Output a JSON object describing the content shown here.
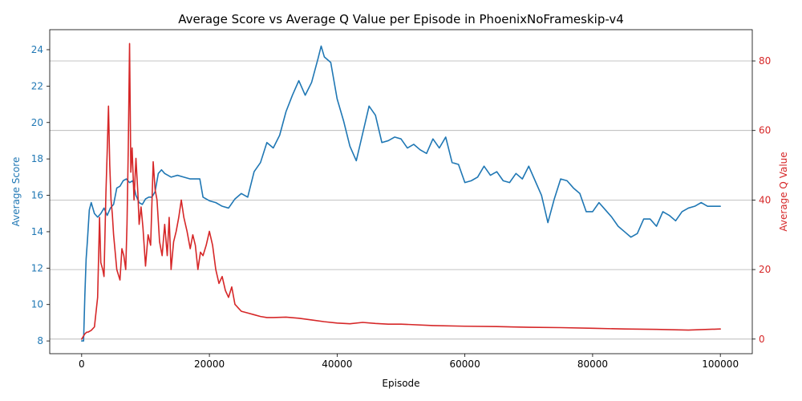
{
  "chart_data": {
    "type": "line",
    "title": "Average Score vs Average Q Value per Episode in PhoenixNoFrameskip-v4",
    "xlabel": "Episode",
    "ylabel_left": "Average Score",
    "ylabel_right": "Average Q Value",
    "xlim": [
      -5000,
      105000
    ],
    "ylim_left": [
      7.3,
      25.1
    ],
    "ylim_right": [
      -4.2,
      89
    ],
    "x_ticks": [
      0,
      20000,
      40000,
      60000,
      80000,
      100000
    ],
    "x_tick_labels": [
      "0",
      "20000",
      "40000",
      "60000",
      "80000",
      "100000"
    ],
    "y_left_ticks": [
      8,
      10,
      12,
      14,
      16,
      18,
      20,
      22,
      24
    ],
    "y_left_tick_labels": [
      "8",
      "10",
      "12",
      "14",
      "16",
      "18",
      "20",
      "22",
      "24"
    ],
    "y_right_ticks": [
      0,
      20,
      40,
      60,
      80
    ],
    "y_right_tick_labels": [
      "0",
      "20",
      "40",
      "60",
      "80"
    ],
    "grid": "horizontal lines at right-axis ticks",
    "colors": {
      "score": "#1f77b4",
      "q": "#d62728",
      "grid": "#b0b0b0",
      "axis": "#000000"
    },
    "series": [
      {
        "axis": "left",
        "x": [
          0,
          300,
          500,
          700,
          900,
          1200,
          1500,
          2000,
          2500,
          3000,
          3500,
          4000,
          4500,
          5000,
          5500,
          6000,
          6500,
          7000,
          7500,
          8000,
          8500,
          9000,
          9500,
          10000,
          10500,
          11000,
          11500,
          12000,
          12500,
          13000,
          13500,
          14000,
          15000,
          16000,
          17000,
          18000,
          18500,
          19000,
          20000,
          21000,
          22000,
          23000,
          24000,
          25000,
          26000,
          27000,
          28000,
          29000,
          30000,
          31000,
          32000,
          33000,
          34000,
          35000,
          36000,
          37000,
          37500,
          38000,
          39000,
          40000,
          41000,
          42000,
          43000,
          44000,
          45000,
          46000,
          47000,
          48000,
          49000,
          50000,
          51000,
          52000,
          53000,
          54000,
          55000,
          56000,
          57000,
          58000,
          59000,
          60000,
          61000,
          62000,
          63000,
          64000,
          65000,
          66000,
          67000,
          68000,
          69000,
          70000,
          71000,
          72000,
          73000,
          74000,
          75000,
          76000,
          77000,
          78000,
          79000,
          80000,
          81000,
          82000,
          83000,
          84000,
          85000,
          86000,
          87000,
          88000,
          89000,
          90000,
          91000,
          92000,
          93000,
          94000,
          95000,
          96000,
          97000,
          98000,
          99000,
          100000
        ],
        "values": [
          8.0,
          8.0,
          10.5,
          12.5,
          13.5,
          15.2,
          15.6,
          15.0,
          14.8,
          15.0,
          15.3,
          14.9,
          15.3,
          15.5,
          16.4,
          16.5,
          16.8,
          16.9,
          16.7,
          16.8,
          16.0,
          15.6,
          15.5,
          15.8,
          15.9,
          15.9,
          16.2,
          17.2,
          17.4,
          17.2,
          17.1,
          17.0,
          17.1,
          17.0,
          16.9,
          16.9,
          16.9,
          15.9,
          15.7,
          15.6,
          15.4,
          15.3,
          15.8,
          16.1,
          15.9,
          17.3,
          17.8,
          18.9,
          18.6,
          19.3,
          20.6,
          21.5,
          22.3,
          21.5,
          22.2,
          23.5,
          24.2,
          23.6,
          23.3,
          21.3,
          20.1,
          18.7,
          17.9,
          19.4,
          20.9,
          20.4,
          18.9,
          19.0,
          19.2,
          19.1,
          18.6,
          18.8,
          18.5,
          18.3,
          19.1,
          18.6,
          19.2,
          17.8,
          17.7,
          16.7,
          16.8,
          17.0,
          17.6,
          17.1,
          17.3,
          16.8,
          16.7,
          17.2,
          16.9,
          17.6,
          16.8,
          16.0,
          14.5,
          15.8,
          16.9,
          16.8,
          16.4,
          16.1,
          15.1,
          15.1,
          15.6,
          15.2,
          14.8,
          14.3,
          14.0,
          13.7,
          13.9,
          14.7,
          14.7,
          14.3,
          15.1,
          14.9,
          14.6,
          15.1,
          15.3,
          15.4,
          15.6,
          15.4,
          15.4,
          15.4
        ]
      },
      {
        "axis": "right",
        "x": [
          0,
          500,
          800,
          1000,
          1500,
          2000,
          2500,
          2800,
          3000,
          3300,
          3500,
          3800,
          4000,
          4200,
          4400,
          4600,
          4800,
          5000,
          5500,
          6000,
          6300,
          6600,
          6900,
          7100,
          7300,
          7500,
          7700,
          7900,
          8200,
          8500,
          8800,
          9000,
          9300,
          9600,
          10000,
          10400,
          10800,
          11200,
          11500,
          11800,
          12200,
          12600,
          13000,
          13400,
          13700,
          14000,
          14400,
          14800,
          15200,
          15600,
          16000,
          16500,
          17000,
          17400,
          17800,
          18200,
          18600,
          19000,
          19500,
          20000,
          20500,
          21000,
          21500,
          22000,
          22500,
          23000,
          23500,
          24000,
          24500,
          25000,
          26000,
          27000,
          28000,
          29000,
          30000,
          32000,
          34000,
          36000,
          38000,
          40000,
          42000,
          44000,
          46000,
          48000,
          50000,
          55000,
          60000,
          65000,
          70000,
          75000,
          80000,
          85000,
          90000,
          95000,
          100000
        ],
        "values": [
          0,
          1.5,
          2.0,
          2.0,
          2.5,
          3.5,
          12.0,
          35.0,
          22.0,
          20.0,
          18.0,
          42.0,
          54.0,
          67.0,
          50.0,
          40.0,
          36.0,
          30.0,
          20.0,
          17.0,
          26.0,
          24.0,
          20.0,
          33.0,
          55.0,
          85.0,
          48.0,
          55.0,
          40.0,
          52.0,
          42.0,
          33.0,
          38.0,
          32.0,
          21.0,
          30.0,
          27.0,
          51.0,
          43.0,
          40.0,
          28.0,
          24.0,
          33.0,
          24.0,
          35.0,
          20.0,
          28.0,
          31.0,
          35.0,
          40.0,
          35.0,
          31.0,
          26.0,
          30.0,
          27.0,
          20.0,
          25.0,
          24.0,
          27.0,
          31.0,
          27.0,
          20.0,
          16.0,
          18.0,
          14.0,
          12.0,
          15.0,
          10.0,
          9.0,
          8.0,
          7.5,
          7.0,
          6.5,
          6.2,
          6.2,
          6.3,
          6.0,
          5.5,
          5.0,
          4.6,
          4.4,
          4.8,
          4.5,
          4.3,
          4.3,
          3.9,
          3.7,
          3.6,
          3.4,
          3.3,
          3.1,
          2.9,
          2.8,
          2.6,
          2.9
        ]
      }
    ]
  }
}
